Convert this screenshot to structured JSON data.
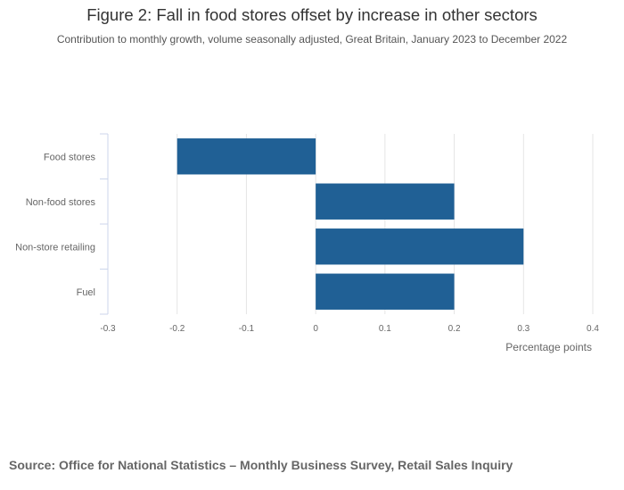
{
  "title": "Figure 2: Fall in food stores offset by increase in other sectors",
  "subtitle": "Contribution to monthly growth, volume seasonally adjusted, Great Britain, January 2023 to December 2022",
  "source": "Source: Office for National Statistics – Monthly Business Survey, Retail Sales Inquiry",
  "colors": {
    "bar": "#206095",
    "grid": "#e5e5e5",
    "axis": "#ccd6eb",
    "text": "#666666"
  },
  "chart_data": {
    "type": "bar",
    "orientation": "horizontal",
    "categories": [
      "Food stores",
      "Non-food stores",
      "Non-store retailing",
      "Fuel"
    ],
    "values": [
      -0.2,
      0.2,
      0.3,
      0.2
    ],
    "xlabel": "Percentage points",
    "xlim": [
      -0.3,
      0.4
    ],
    "xticks": [
      -0.3,
      -0.2,
      -0.1,
      0,
      0.1,
      0.2,
      0.3,
      0.4
    ],
    "xtick_labels": [
      "-0.3",
      "-0.2",
      "-0.1",
      "0",
      "0.1",
      "0.2",
      "0.3",
      "0.4"
    ],
    "grid": true
  }
}
